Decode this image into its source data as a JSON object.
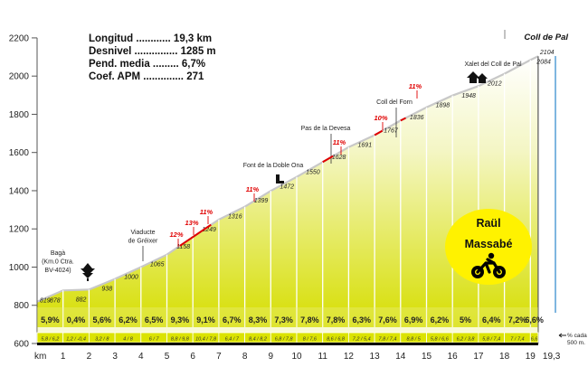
{
  "chart_data": {
    "type": "area",
    "title": "Coll de Pal",
    "stats": [
      {
        "label": "Longitud ............",
        "value": "19,3 km"
      },
      {
        "label": "Desnivel ...............",
        "value": "1285 m"
      },
      {
        "label": "Pend. media .........",
        "value": "6,7%"
      },
      {
        "label": "Coef. APM ..............",
        "value": "271"
      }
    ],
    "author": {
      "line1": "Raül",
      "line2": "Massabé"
    },
    "xlabel": "km",
    "ylim": [
      600,
      2200
    ],
    "yticks": [
      "600",
      "800",
      "1000",
      "1200",
      "1400",
      "1600",
      "1800",
      "2000",
      "2200"
    ],
    "xlim": [
      0,
      19.3
    ],
    "xticks": [
      "1",
      "2",
      "3",
      "4",
      "5",
      "6",
      "7",
      "8",
      "9",
      "10",
      "11",
      "12",
      "13",
      "14",
      "15",
      "16",
      "17",
      "18",
      "19"
    ],
    "x_end_label": "19,3",
    "elevations": [
      {
        "km": 0,
        "alt": 819,
        "label": "819"
      },
      {
        "km": 1,
        "alt": 878,
        "label": "878"
      },
      {
        "km": 2,
        "alt": 882,
        "label": "882"
      },
      {
        "km": 3,
        "alt": 938,
        "label": "938"
      },
      {
        "km": 4,
        "alt": 1000,
        "label": "1000"
      },
      {
        "km": 5,
        "alt": 1065,
        "label": "1065"
      },
      {
        "km": 6,
        "alt": 1158,
        "label": "1158"
      },
      {
        "km": 7,
        "alt": 1249,
        "label": "1249"
      },
      {
        "km": 8,
        "alt": 1316,
        "label": "1316"
      },
      {
        "km": 9,
        "alt": 1399,
        "label": "1399"
      },
      {
        "km": 10,
        "alt": 1472,
        "label": "1472"
      },
      {
        "km": 11,
        "alt": 1550,
        "label": "1550"
      },
      {
        "km": 12,
        "alt": 1628,
        "label": "1628"
      },
      {
        "km": 13,
        "alt": 1691,
        "label": "1691"
      },
      {
        "km": 14,
        "alt": 1767,
        "label": "1767"
      },
      {
        "km": 15,
        "alt": 1836,
        "label": "1836"
      },
      {
        "km": 16,
        "alt": 1898,
        "label": "1898"
      },
      {
        "km": 17,
        "alt": 1948,
        "label": "1948"
      },
      {
        "km": 18,
        "alt": 2012,
        "label": "2012"
      },
      {
        "km": 19,
        "alt": 2084,
        "label": "2084"
      },
      {
        "km": 19.3,
        "alt": 2104,
        "label": "2104"
      }
    ],
    "segment_gradients": [
      "5,9%",
      "0,4%",
      "5,6%",
      "6,2%",
      "6,5%",
      "9,3%",
      "9,1%",
      "6,7%",
      "8,3%",
      "7,3%",
      "7,8%",
      "7,8%",
      "6,3%",
      "7,6%",
      "6,9%",
      "6,2%",
      "5%",
      "6,4%",
      "7,2%",
      "6,6%"
    ],
    "segment_ranges": [
      "5,8 / 6,2",
      "1,2 / -0,4",
      "3,2 / 8",
      "4 / 8",
      "6 / 7",
      "8,8 / 9,8",
      "10,4 / 7,8",
      "6,4 / 7",
      "8,4 / 8,2",
      "6,8 / 7,8",
      "8 / 7,6",
      "8,6 / 6,8",
      "7,2 / 5,4",
      "7,8 / 7,4",
      "8,8 / 5",
      "5,8 / 6,6",
      "6,2 / 3,8",
      "5,8 / 7,4",
      "7 / 7,4",
      "6,6"
    ],
    "scale_note": "% cada 500 m.",
    "places": [
      {
        "name": "Bagà (Km.0 Ctra. BV-4024)",
        "km": 0
      },
      {
        "name": "Viaducte de Gréixer",
        "km": 4
      },
      {
        "name": "Font de la Doble Ona",
        "km": 9
      },
      {
        "name": "Pas de la Devesa",
        "km": 11
      },
      {
        "name": "Coll del Forn",
        "km": 13.4
      },
      {
        "name": "Xalet del Coll de Pal",
        "km": 16.7
      }
    ],
    "max_gradients": [
      {
        "label": "12%",
        "km": 5.5
      },
      {
        "label": "13%",
        "km": 5.9
      },
      {
        "label": "11%",
        "km": 6.5
      },
      {
        "label": "11%",
        "km": 8.1
      },
      {
        "label": "11%",
        "km": 11.3
      },
      {
        "label": "10%",
        "km": 13.1
      },
      {
        "label": "11%",
        "km": 14.2
      }
    ]
  },
  "colors": {
    "fill_top": "#f3f6b0",
    "fill_bottom": "#d8e000",
    "outline": "#c8c8c8",
    "steep_mark": "#e00000",
    "badge": "#fff200"
  }
}
